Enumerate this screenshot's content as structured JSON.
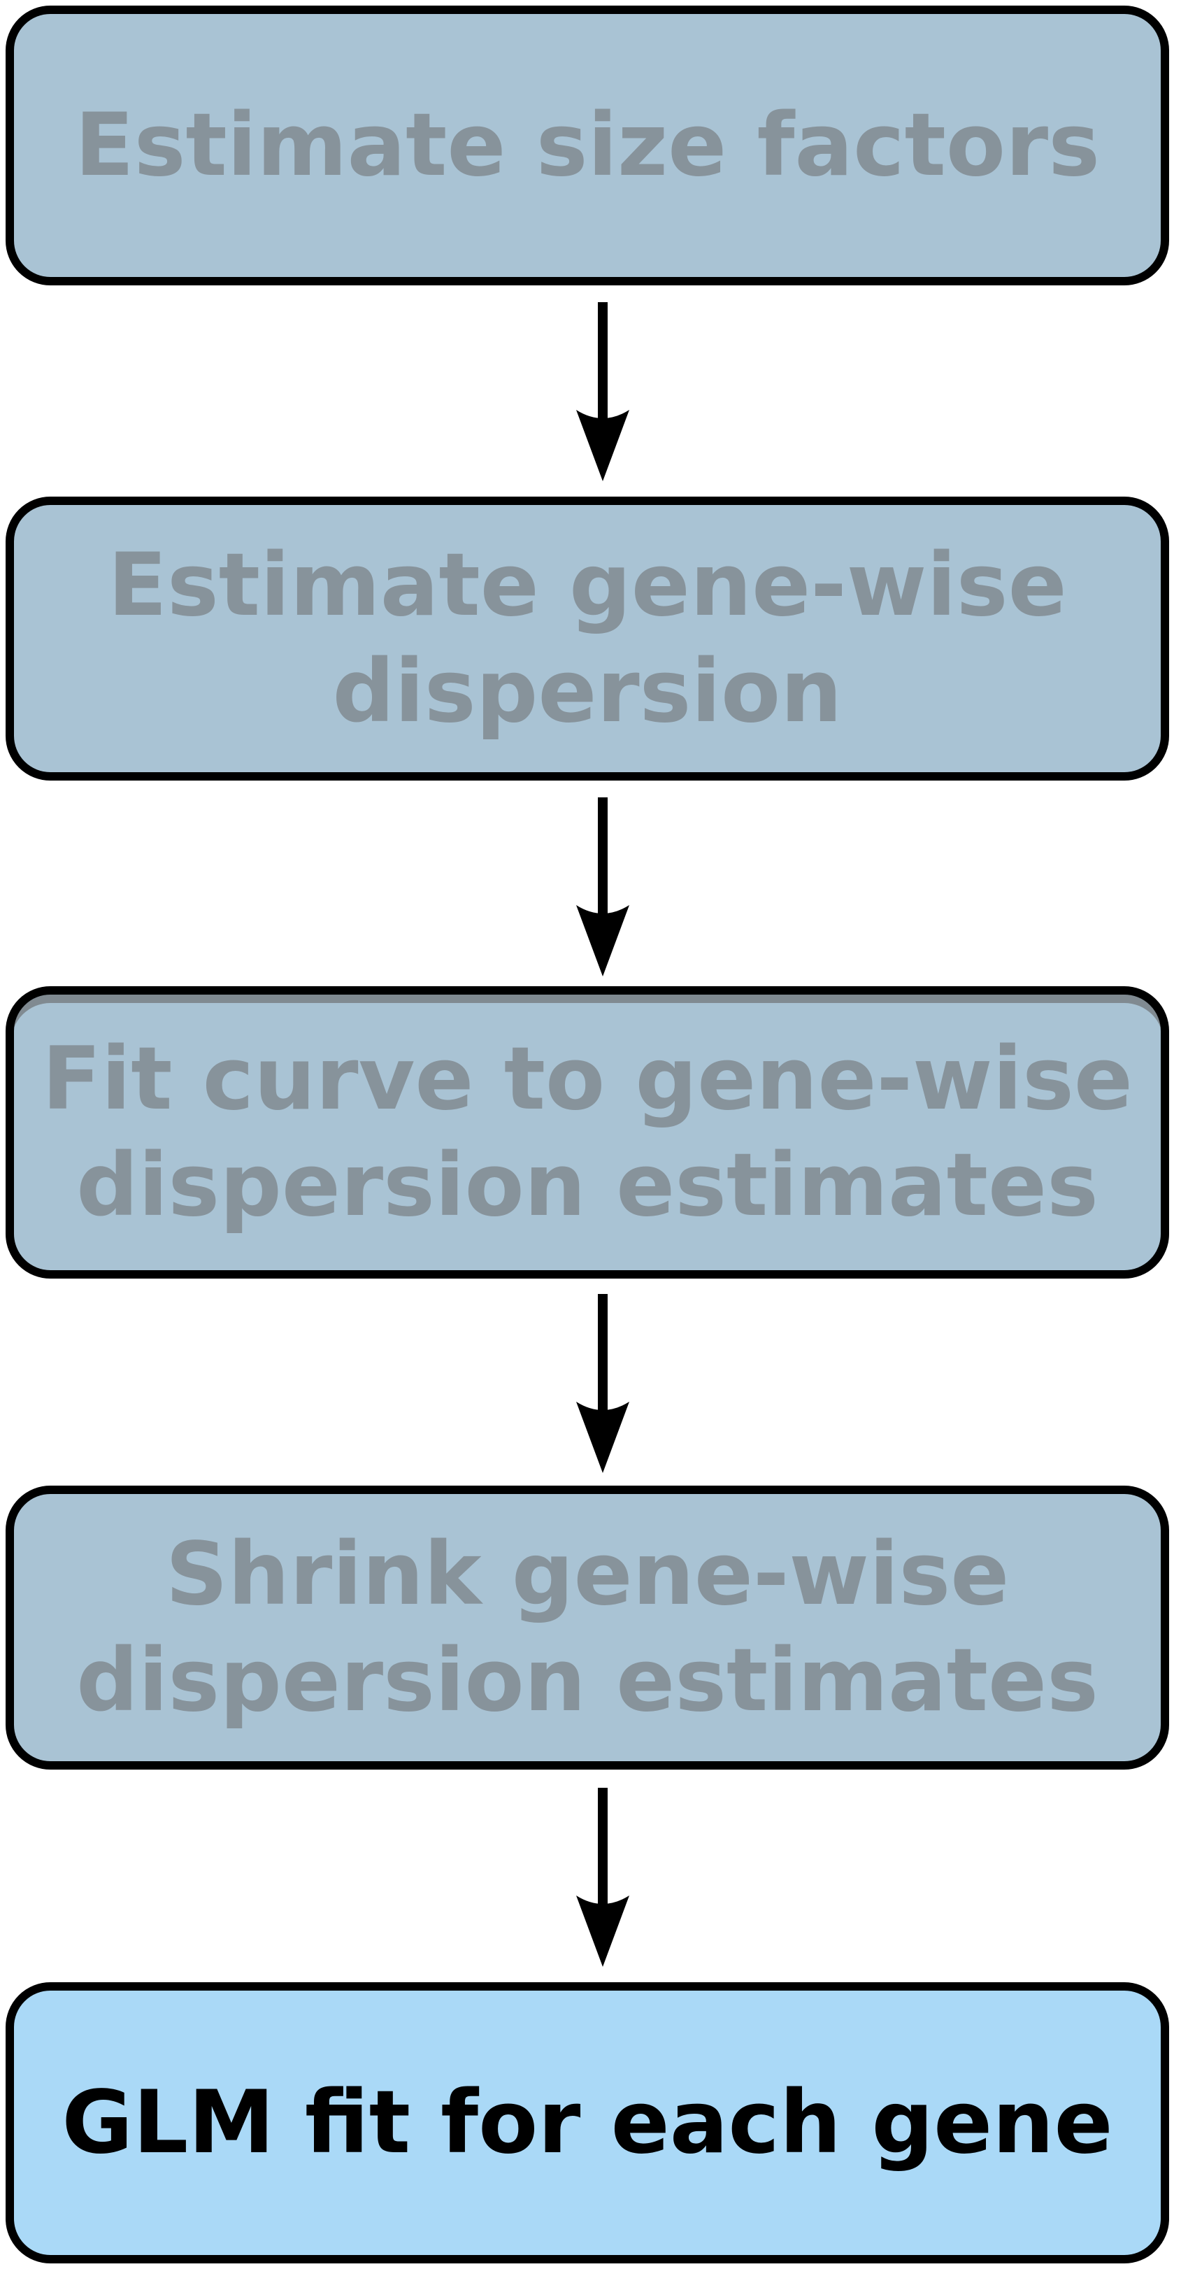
{
  "steps": [
    {
      "label": "Estimate size factors",
      "state": "inactive"
    },
    {
      "label": "Estimate gene-wise\ndispersion",
      "state": "inactive"
    },
    {
      "label": "Fit curve to gene-wise\ndispersion estimates",
      "state": "inactive"
    },
    {
      "label": "Shrink gene-wise\ndispersion estimates",
      "state": "inactive"
    },
    {
      "label": "GLM fit for each gene",
      "state": "active"
    }
  ],
  "colors": {
    "inactive_fill": "#a9c3d4",
    "inactive_text": "#87939b",
    "active_fill": "#aad9f7",
    "active_text": "#000000",
    "border": "#000000",
    "arrow": "#000000"
  }
}
